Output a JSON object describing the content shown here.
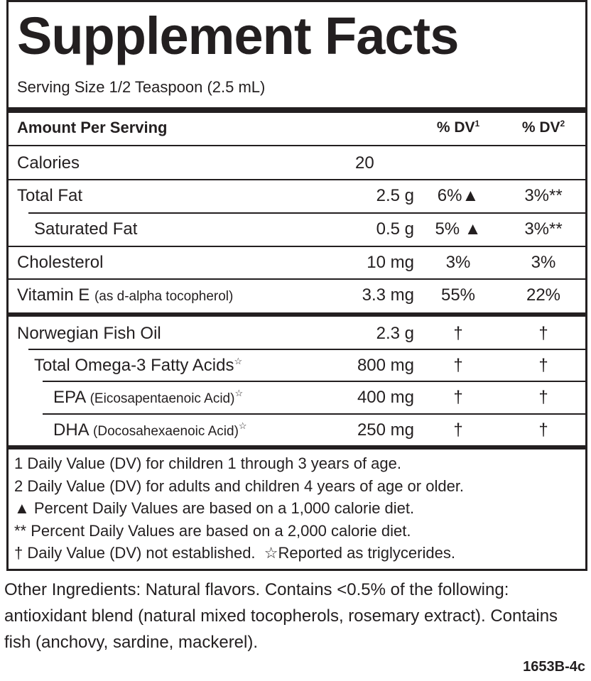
{
  "title": "Supplement Facts",
  "serving_size": "Serving Size 1/2 Teaspoon (2.5 mL)",
  "header": {
    "label": "Amount Per Serving",
    "dv1": "% DV",
    "dv1_sup": "1",
    "dv2": "% DV",
    "dv2_sup": "2"
  },
  "rows": [
    {
      "name": "Calories",
      "amount": "20"
    },
    {
      "name": "Total Fat",
      "amount": "2.5 g",
      "dv1": "6%▲",
      "dv2": "3%**"
    },
    {
      "name": "Saturated Fat",
      "amount": "0.5 g",
      "dv1": "5% ▲",
      "dv2": "3%**"
    },
    {
      "name": "Cholesterol",
      "amount": "10 mg",
      "dv1": "3%",
      "dv2": "3%"
    },
    {
      "name": "Vitamin E",
      "note": "(as d-alpha tocopherol)",
      "amount": "3.3 mg",
      "dv1": "55%",
      "dv2": "22%"
    },
    {
      "name": "Norwegian Fish Oil",
      "amount": "2.3 g",
      "dv1": "†",
      "dv2": "†"
    },
    {
      "name": "Total Omega-3 Fatty Acids",
      "marker": "☆",
      "amount": "800 mg",
      "dv1": "†",
      "dv2": "†"
    },
    {
      "name": "EPA",
      "note": "(Eicosapentaenoic Acid)",
      "marker": "☆",
      "amount": "400 mg",
      "dv1": "†",
      "dv2": "†"
    },
    {
      "name": "DHA",
      "note": "(Docosahexaenoic Acid)",
      "marker": "☆",
      "amount": "250 mg",
      "dv1": "†",
      "dv2": "†"
    }
  ],
  "footnotes": [
    [
      "1 Daily Value (DV) for children 1 through 3 years of age."
    ],
    [
      "2 Daily Value (DV) for adults and children 4 years of age or older."
    ],
    [
      "▲ Percent Daily Values are based on a 1,000 calorie diet."
    ],
    [
      "** Percent Daily Values are based on a 2,000 calorie diet."
    ],
    [
      "† Daily Value (DV) not established.",
      "☆Reported as triglycerides."
    ]
  ],
  "other_ingredients": "Other Ingredients: Natural flavors. Contains <0.5% of the following: antioxidant blend (natural mixed tocopherols, rosemary extract). Contains fish (anchovy, sardine, mackerel).",
  "code": "1653B-4c"
}
